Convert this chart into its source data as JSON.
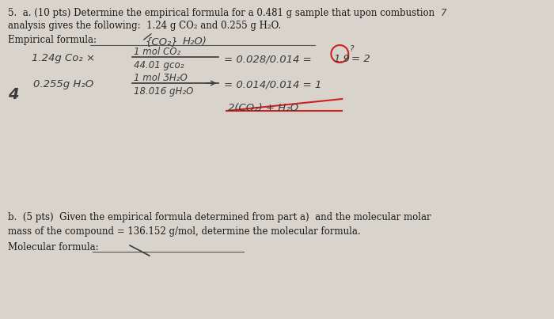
{
  "bg_color": "#d8d4cc",
  "text_color": "#1a1a1a",
  "handwrite_color": "#3a3a3a",
  "red_color": "#cc2222",
  "font_size_body": 8.5,
  "font_size_hand": 9.5,
  "line1": "5.  a. (10 pts) Determine the empirical formula for a 0.481 g sample that upon combustion",
  "line2": "analysis gives the following:  1.24 g CO₂ and 0.255 g H₂O.",
  "empirical_label": "Empirical formula:",
  "part_b_1": "b.  (5 pts)  Given the empirical formula determined from part a)  and the molecular molar",
  "part_b_2": "mass of the compound = 136.152 g/mol, determine the molecular formula.",
  "mol_label": "Molecular formula:"
}
